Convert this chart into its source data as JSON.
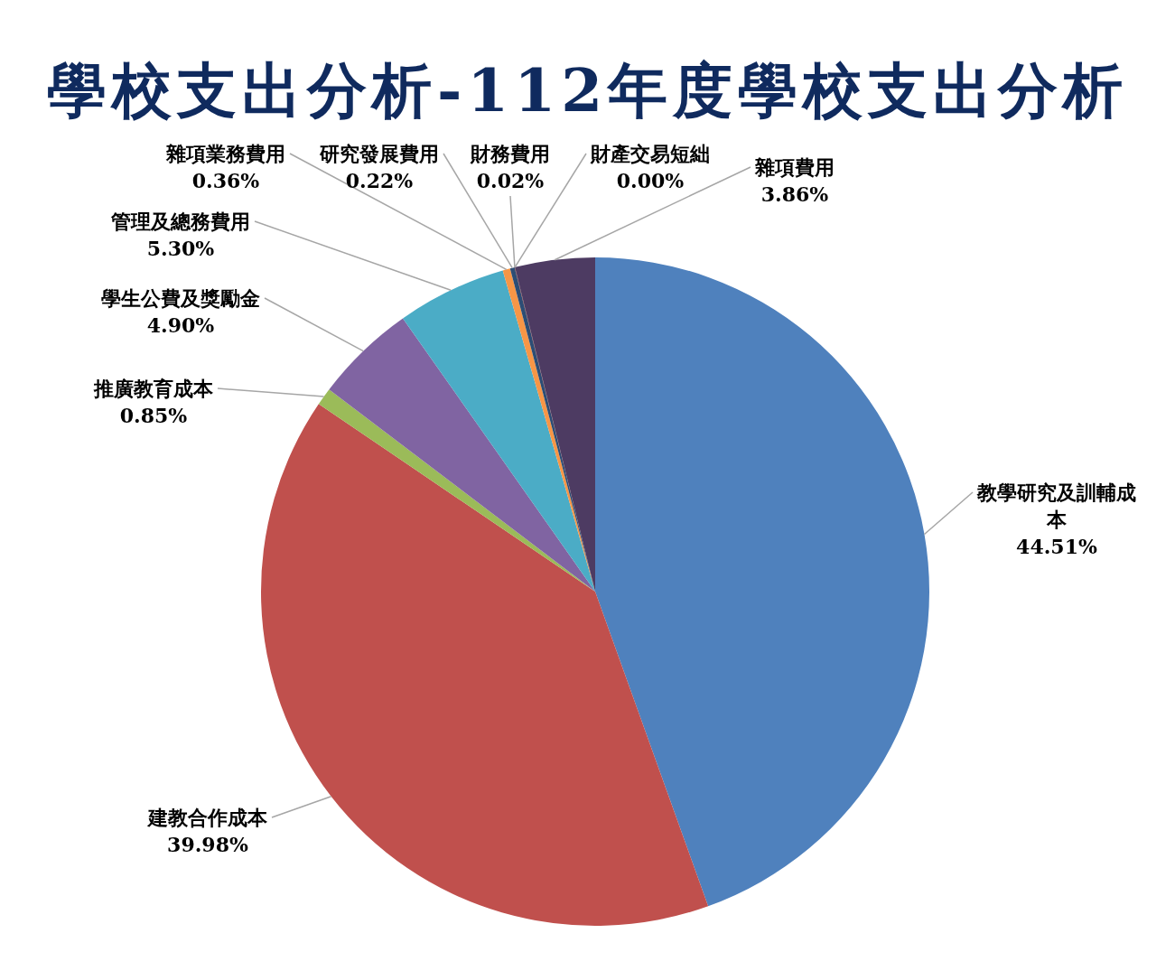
{
  "chart_data": {
    "type": "pie",
    "title": "學校支出分析-112年度學校支出分析",
    "categories": [
      "教學研究及訓輔成本",
      "建教合作成本",
      "推廣教育成本",
      "學生公費及獎勵金",
      "管理及總務費用",
      "雜項業務費用",
      "研究發展費用",
      "財務費用",
      "財產交易短絀",
      "雜項費用"
    ],
    "values": [
      44.51,
      39.98,
      0.85,
      4.9,
      5.3,
      0.36,
      0.22,
      0.02,
      0.0,
      3.86
    ],
    "colors": [
      "#4f81bd",
      "#c0504d",
      "#9bbb59",
      "#8064a2",
      "#4bacc6",
      "#f79646",
      "#2c4d75",
      "#772c2a",
      "#5f7530",
      "#4d3b62"
    ],
    "value_labels": [
      "44.51%",
      "39.98%",
      "0.85%",
      "4.90%",
      "5.30%",
      "0.36%",
      "0.22%",
      "0.02%",
      "0.00%",
      "3.86%"
    ]
  }
}
